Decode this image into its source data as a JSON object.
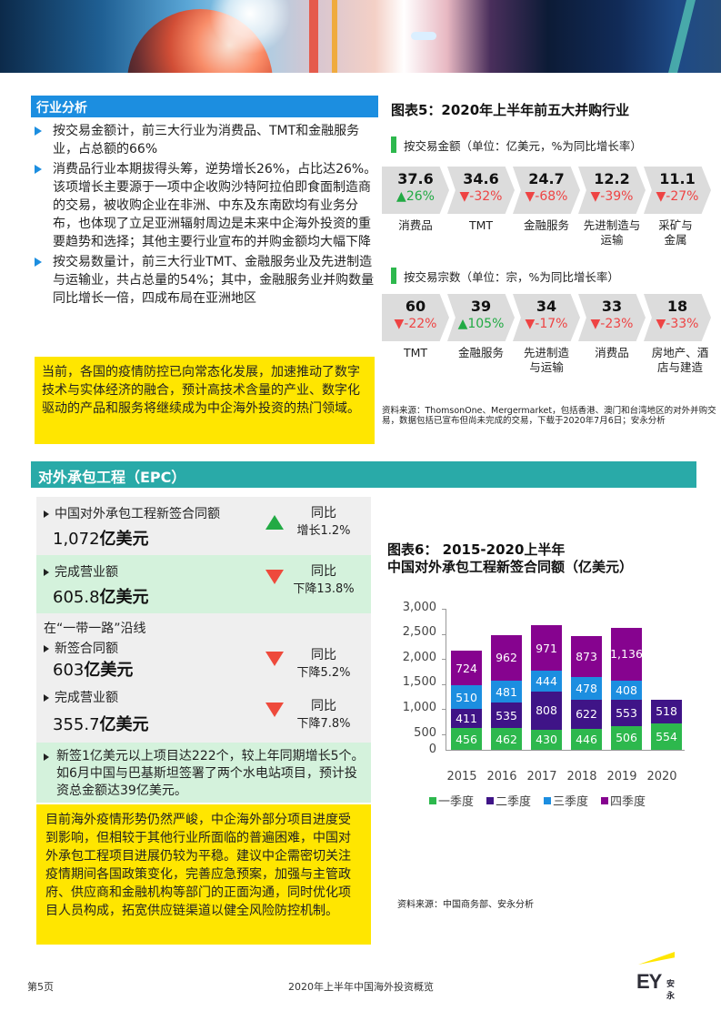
{
  "industry": {
    "header": "行业分析",
    "bullets": [
      "按交易金额计，前三大行业为消费品、TMT和金融服务业，占总额的66%",
      "消费品行业本期拔得头筹，逆势增长26%，占比达26%。该项增长主要源于一项中企收购沙特阿拉伯即食面制造商的交易，被收购企业在非洲、中东及东南欧均有业务分布，也体现了立足亚洲辐射周边是未来中企海外投资的重要趋势和选择；其他主要行业宣布的并购金额均大幅下降",
      "按交易数量计，前三大行业TMT、金融服务业及先进制造与运输业，共占总量的54%；其中，金融服务业并购数量同比增长一倍，四成布局在亚洲地区"
    ],
    "highlight": "当前，各国的疫情防控已向常态化发展，加速推动了数字技术与实体经济的融合，预计高技术含量的产业、数字化驱动的产品和服务将继续成为中企海外投资的热门领域。"
  },
  "chart5": {
    "title": "图表5：2020年上半年前五大并购行业",
    "by_value": {
      "subtitle": "按交易金额（单位：亿美元，%为同比增长率）",
      "items": [
        {
          "value": "37.6",
          "change": "▲26%",
          "dir": "up",
          "label": "消费品"
        },
        {
          "value": "34.6",
          "change": "▼-32%",
          "dir": "down",
          "label": "TMT"
        },
        {
          "value": "24.7",
          "change": "▼-68%",
          "dir": "down",
          "label": "金融服务"
        },
        {
          "value": "12.2",
          "change": "▼-39%",
          "dir": "down",
          "label": "先进制造与运输"
        },
        {
          "value": "11.1",
          "change": "▼-27%",
          "dir": "down",
          "label": "采矿与金属"
        }
      ]
    },
    "by_count": {
      "subtitle": "按交易宗数（单位：宗，%为同比增长率）",
      "items": [
        {
          "value": "60",
          "change": "▼-22%",
          "dir": "down",
          "label": "TMT"
        },
        {
          "value": "39",
          "change": "▲105%",
          "dir": "up",
          "label": "金融服务"
        },
        {
          "value": "34",
          "change": "▼-17%",
          "dir": "down",
          "label": "先进制造与运输"
        },
        {
          "value": "33",
          "change": "▼-23%",
          "dir": "down",
          "label": "消费品"
        },
        {
          "value": "18",
          "change": "▼-33%",
          "dir": "down",
          "label": "房地产、酒店与建造"
        }
      ]
    },
    "source": "资料来源：ThomsonOne、Mergermarket，包括香港、澳门和台湾地区的对外并购交易，数据包括已宣布但尚未完成的交易，下载于2020年7月6日；安永分析"
  },
  "epc": {
    "header": "对外承包工程（EPC）",
    "kpis": [
      {
        "label": "中国对外承包工程新签合同额",
        "value": "1,072",
        "unit": "亿美元",
        "yoy_l1": "同比",
        "yoy_l2": "增长1.2%",
        "dir": "up"
      },
      {
        "label": "完成营业额",
        "value": "605.8",
        "unit": "亿美元",
        "yoy_l1": "同比",
        "yoy_l2": "下降13.8%",
        "dir": "down"
      }
    ],
    "belt_road": {
      "header": "在“一带一路”沿线",
      "items": [
        {
          "label": "新签合同额",
          "value": "603",
          "unit": "亿美元",
          "yoy_l1": "同比",
          "yoy_l2": "下降5.2%",
          "dir": "down"
        },
        {
          "label": "完成营业额",
          "value": "355.7",
          "unit": "亿美元",
          "yoy_l1": "同比",
          "yoy_l2": "下降7.8%",
          "dir": "down"
        }
      ]
    },
    "projects_note": "新签1亿美元以上项目达222个，较上年同期增长5个。如6月中国与巴基斯坦签署了两个水电站项目，预计投资总金额达39亿美元。",
    "highlight": "目前海外疫情形势仍然严峻，中企海外部分项目进度受到影响，但相较于其他行业所面临的普遍困难，中国对外承包工程项目进展仍较为平稳。建议中企需密切关注疫情期间各国政策变化，完善应急预案，加强与主管政府、供应商和金融机构等部门的正面沟通，同时优化项目人员构成，拓宽供应链渠道以健全风险防控机制。"
  },
  "chart6": {
    "title_line1": "图表6： 2015-2020上半年",
    "title_line2": "中国对外承包工程新签合同额（亿美元）",
    "source": "资料来源：中国商务部、安永分析",
    "y_ticks": [
      "3,000",
      "2,500",
      "2,000",
      "1,500",
      "1,000",
      "500",
      "0"
    ],
    "legend": [
      "一季度",
      "二季度",
      "三季度",
      "四季度"
    ]
  },
  "chart_data": {
    "type": "bar",
    "stacked": true,
    "title": "图表6： 2015-2020上半年 中国对外承包工程新签合同额（亿美元）",
    "categories": [
      "2015",
      "2016",
      "2017",
      "2018",
      "2019",
      "2020"
    ],
    "series": [
      {
        "name": "一季度",
        "color": "#2db84d",
        "values": [
          456,
          462,
          430,
          446,
          506,
          554
        ]
      },
      {
        "name": "二季度",
        "color": "#3f1487",
        "values": [
          411,
          535,
          808,
          622,
          553,
          518
        ]
      },
      {
        "name": "三季度",
        "color": "#1c8ee0",
        "values": [
          510,
          481,
          444,
          478,
          408,
          null
        ]
      },
      {
        "name": "四季度",
        "color": "#86038f",
        "values": [
          724,
          962,
          971,
          873,
          1136,
          null
        ]
      }
    ],
    "xlabel": "",
    "ylabel": "",
    "ylim": [
      0,
      3000
    ],
    "yticks": [
      0,
      500,
      1000,
      1500,
      2000,
      2500,
      3000
    ],
    "legend_position": "bottom",
    "grid": false
  },
  "footer": {
    "page": "第5页",
    "title": "2020年上半年中国海外投资概览",
    "logo_text": "EY",
    "logo_cn": "安永"
  },
  "colors": {
    "blue_header": "#1c8ee0",
    "teal_header": "#29aaa8",
    "highlight_yellow": "#ffe600",
    "up_green": "#22aa44",
    "down_red": "#ee4444"
  }
}
